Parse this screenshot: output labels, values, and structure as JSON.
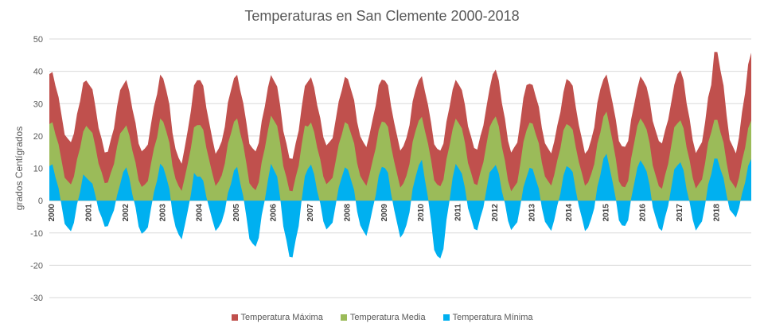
{
  "chart_data": {
    "type": "area",
    "title": "Temperaturas en San Clemente 2000-2018",
    "ylabel": "grados Centígrados",
    "xlabel": "",
    "ylim": [
      -30,
      50
    ],
    "yticks": [
      50,
      40,
      30,
      20,
      10,
      0,
      -10,
      -20,
      -30
    ],
    "x_start": 2000,
    "x_end": 2019,
    "years": [
      "2000",
      "2001",
      "2002",
      "2003",
      "2004",
      "2005",
      "2006",
      "2007",
      "2008",
      "2009",
      "2010",
      "2011",
      "2012",
      "2013",
      "2014",
      "2015",
      "2016",
      "2017",
      "2018"
    ],
    "series": [
      {
        "name": "Temperatura Máxima",
        "color": "#c0504d",
        "yearly_peaks": [
          39.5,
          37,
          37,
          38.5,
          38,
          38.5,
          38.5,
          38,
          38,
          38,
          38,
          37,
          40.5,
          36,
          38,
          38.5,
          38,
          40.5,
          46
        ],
        "yearly_troughs": [
          18,
          15,
          15,
          12,
          15,
          15,
          13,
          17,
          17,
          16,
          15,
          16,
          15,
          15,
          15,
          16,
          18,
          15,
          15
        ]
      },
      {
        "name": "Temperatura Media",
        "color": "#9bbb59",
        "yearly_peaks": [
          24,
          23,
          23,
          25,
          24,
          25,
          26,
          24,
          24,
          25,
          25.5,
          25,
          26,
          24,
          24,
          27,
          25,
          25,
          25
        ],
        "yearly_troughs": [
          5,
          5.5,
          4,
          3.5,
          5,
          3,
          3,
          5,
          5,
          4.5,
          4,
          5,
          3,
          5,
          5,
          3.5,
          4,
          4,
          4
        ]
      },
      {
        "name": "Temperatura Mínima",
        "color": "#00b0f0",
        "yearly_peaks": [
          11,
          7,
          10,
          11,
          8,
          10,
          11,
          11,
          10,
          11,
          12,
          11,
          11,
          10,
          11,
          14,
          12,
          12,
          13
        ],
        "yearly_troughs": [
          -9.5,
          -8,
          -10.5,
          -11.5,
          -9,
          -14.5,
          -17.5,
          -9,
          -10.5,
          -11,
          -18.5,
          -9,
          -9,
          -9,
          -9,
          -8.5,
          -9,
          -9,
          -5
        ]
      }
    ],
    "legend_position": "bottom",
    "grid": true
  },
  "legend": {
    "max_label": "Temperatura Máxima",
    "mean_label": "Temperatura Media",
    "min_label": "Temperatura Mínima"
  }
}
